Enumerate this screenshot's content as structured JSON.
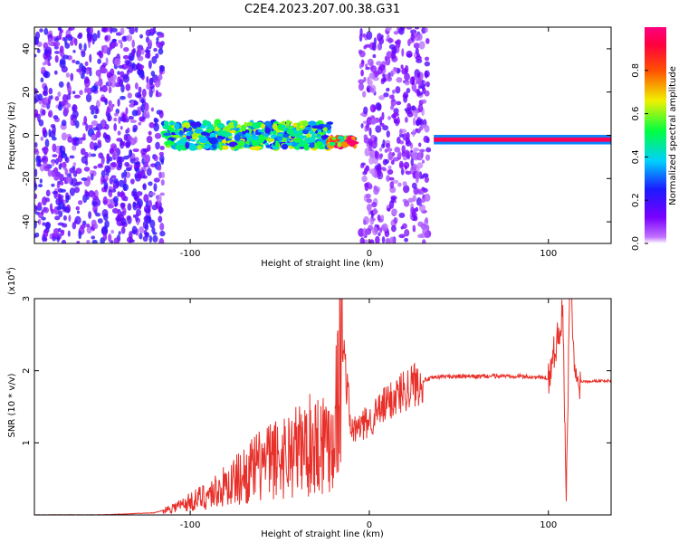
{
  "page_title": "C2E4.2023.207.00.38.G31",
  "chart_data": [
    {
      "type": "heatmap",
      "xlabel": "Height of straight line (km)",
      "ylabel": "Frequency (Hz)",
      "xlim": [
        -187,
        135
      ],
      "ylim": [
        -50,
        50
      ],
      "x_ticks": [
        -100,
        0,
        100
      ],
      "y_ticks": [
        -40,
        -20,
        0,
        20,
        40
      ],
      "colorbar": {
        "label": "Normalized spectral amplitude",
        "range": [
          0,
          1
        ],
        "ticks": [
          "0.0",
          "0.2",
          "0.4",
          "0.6",
          "0.8"
        ],
        "colormap": "rainbow (purple-blue-cyan-green-yellow-red-magenta)"
      },
      "regions": [
        {
          "x": [
            -187,
            -115
          ],
          "kind": "broadband noise",
          "freq": [
            -50,
            50
          ],
          "amplitude": 0.2
        },
        {
          "x": [
            -115,
            -22
          ],
          "kind": "signal band",
          "freq_center": 0,
          "bandwidth": 12,
          "amplitude": 0.45
        },
        {
          "x": [
            -22,
            -8
          ],
          "kind": "signal band",
          "freq_center": -3,
          "bandwidth": 4,
          "amplitude": 0.75
        },
        {
          "x": [
            -5,
            33
          ],
          "kind": "broadband noise",
          "freq": [
            -50,
            50
          ],
          "amplitude": 0.15
        },
        {
          "x": [
            36,
            135
          ],
          "kind": "narrow carrier",
          "freq_center": -2,
          "bandwidth": 2,
          "amplitude": 0.95
        }
      ]
    },
    {
      "type": "line",
      "xlabel": "Height of straight line (km)",
      "ylabel": "SNR (10 * v/v)",
      "y_multiplier": "(x10^4)",
      "xlim": [
        -187,
        135
      ],
      "ylim": [
        0,
        3.0
      ],
      "x_ticks": [
        -100,
        0,
        100
      ],
      "y_ticks": [
        1,
        2,
        3
      ],
      "series": [
        {
          "color": "#e8302a",
          "x": [
            -187,
            -150,
            -120,
            -110,
            -100,
            -90,
            -80,
            -70,
            -60,
            -50,
            -40,
            -30,
            -20,
            -15,
            -10,
            0,
            10,
            20,
            30,
            40,
            60,
            80,
            100,
            108,
            110,
            112,
            115,
            125,
            135
          ],
          "y": [
            0.0,
            0.0,
            0.03,
            0.1,
            0.18,
            0.28,
            0.4,
            0.55,
            0.7,
            0.8,
            0.9,
            1.0,
            1.1,
            2.45,
            1.15,
            1.3,
            1.55,
            1.75,
            1.87,
            1.92,
            1.92,
            1.93,
            1.9,
            2.8,
            0.12,
            3.35,
            1.85,
            1.86,
            1.86
          ]
        }
      ]
    }
  ],
  "labels": {
    "top_xlabel": "Height of straight line (km)",
    "top_ylabel": "Frequency (Hz)",
    "bottom_xlabel": "Height of straight line (km)",
    "bottom_ylabel": "SNR (10 * v/v)",
    "colorbar_label": "Normalized spectral amplitude",
    "multiplier_base": "(x10",
    "multiplier_exp": "4",
    "multiplier_close": ")"
  }
}
